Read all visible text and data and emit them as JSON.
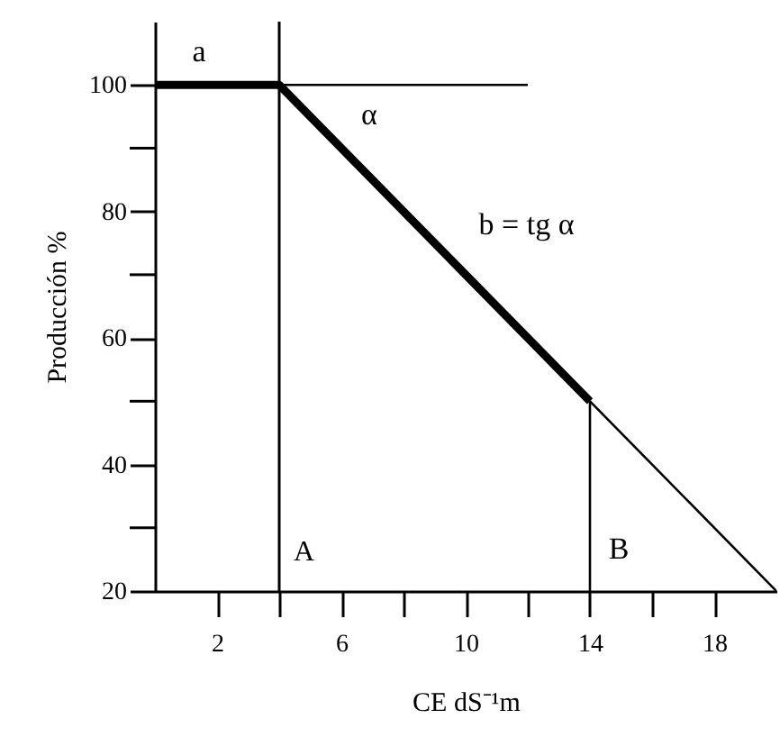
{
  "chart_data": {
    "type": "line",
    "xlabel": "CE dS⁻¹m",
    "ylabel": "Producción %",
    "xlim": [
      0,
      20
    ],
    "ylim": [
      20,
      110
    ],
    "xticks": [
      2,
      {
        "value": 4,
        "label": null
      },
      6,
      {
        "value": 8,
        "label": null
      },
      10,
      {
        "value": 12,
        "label": null
      },
      14,
      {
        "value": 16,
        "label": null
      },
      18
    ],
    "yticks": [
      20,
      {
        "value": 30,
        "label": null
      },
      40,
      {
        "value": 50,
        "label": null
      },
      60,
      {
        "value": 70,
        "label": null
      },
      80,
      {
        "value": 90,
        "label": null
      },
      100
    ],
    "series": [
      {
        "color": "#000000",
        "x": [
          0,
          4,
          14
        ],
        "values": [
          100,
          100,
          50
        ]
      },
      {
        "color": "#000000",
        "x": [
          14,
          20
        ],
        "values": [
          50,
          20
        ]
      },
      {
        "color": "#000000",
        "x": [
          4,
          12
        ],
        "values": [
          100,
          100
        ]
      },
      {
        "color": "#000000",
        "x": [
          14,
          14
        ],
        "values": [
          20,
          50
        ]
      }
    ],
    "ref_lines": [
      {
        "axis": "x",
        "value": 4,
        "label": "A",
        "color": "#000000"
      }
    ],
    "annotations": [
      {
        "text": "a",
        "x": 2,
        "y": 100
      },
      {
        "text": "α",
        "x": 4,
        "y": 100
      },
      {
        "text": "b = tg α",
        "x": 9,
        "y": 75
      },
      {
        "text": "B",
        "x": 14,
        "y": 20
      }
    ],
    "grid": false
  }
}
